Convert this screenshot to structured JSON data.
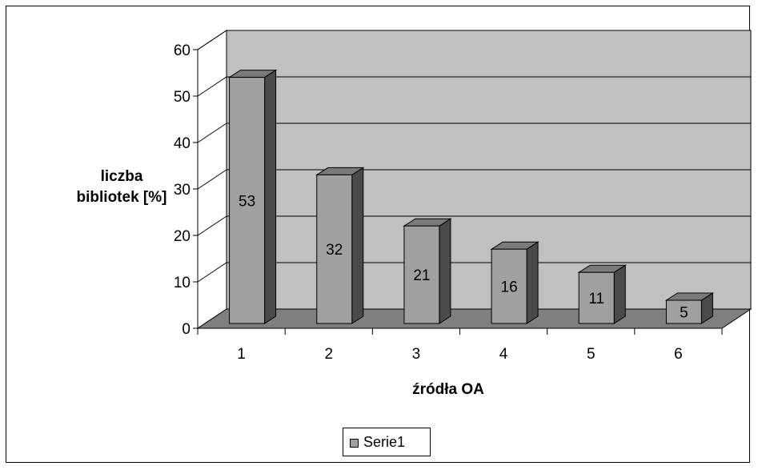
{
  "chart_data": {
    "type": "bar",
    "title": "",
    "categories": [
      "1",
      "2",
      "3",
      "4",
      "5",
      "6"
    ],
    "series": [
      {
        "name": "Serie1",
        "values": [
          53,
          32,
          21,
          16,
          11,
          5
        ]
      }
    ],
    "ylabel": "liczba bibliotek [%]",
    "ylabel_lines": [
      "liczba",
      "bibliotek [%]"
    ],
    "xlabel": "źródła OA",
    "ylim": [
      0,
      60
    ],
    "yticks": [
      0,
      10,
      20,
      30,
      40,
      50,
      60
    ],
    "grid": true,
    "legend_position": "bottom",
    "style": "3d",
    "colors": {
      "bar_front": "#a0a0a0",
      "bar_top": "#7a7a7a",
      "bar_side": "#4a4a4a",
      "back_wall": "#c0c0c0",
      "floor": "#7f7f7f"
    }
  }
}
